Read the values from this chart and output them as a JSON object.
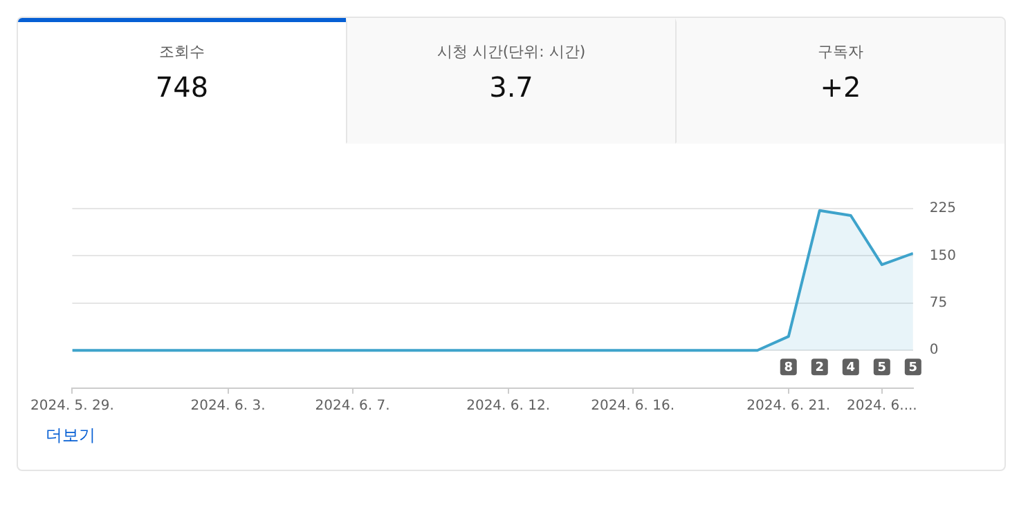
{
  "chart_data": {
    "type": "area",
    "annotations": [
      "조회수",
      "748",
      "시청 시간(단위: 시간)",
      "3.7",
      "구독자",
      "+2",
      "더보기",
      {
        "text": "8",
        "x": "2024-06-21"
      },
      {
        "text": "2",
        "x": "2024-06-22"
      },
      {
        "text": "4",
        "x": "2024-06-23"
      },
      {
        "text": "5",
        "x": "2024-06-24"
      },
      {
        "text": "5",
        "x": "2024-06-25"
      }
    ],
    "x": [
      "2024-05-29",
      "2024-05-30",
      "2024-05-31",
      "2024-06-01",
      "2024-06-02",
      "2024-06-03",
      "2024-06-04",
      "2024-06-05",
      "2024-06-06",
      "2024-06-07",
      "2024-06-08",
      "2024-06-09",
      "2024-06-10",
      "2024-06-11",
      "2024-06-12",
      "2024-06-13",
      "2024-06-14",
      "2024-06-15",
      "2024-06-16",
      "2024-06-17",
      "2024-06-18",
      "2024-06-19",
      "2024-06-20",
      "2024-06-21",
      "2024-06-22",
      "2024-06-23",
      "2024-06-24",
      "2024-06-25"
    ],
    "series": [
      {
        "color": "#3ea3cb",
        "values": [
          0,
          0,
          0,
          0,
          0,
          0,
          0,
          0,
          0,
          0,
          0,
          0,
          0,
          0,
          0,
          0,
          0,
          0,
          0,
          0,
          0,
          0,
          0,
          22,
          222,
          214,
          136,
          154
        ]
      }
    ],
    "xlim": [
      "2024-05-29",
      "2024-06-25"
    ],
    "xticks": [
      {
        "value": "2024-05-29",
        "label": "2024. 5. 29."
      },
      {
        "value": "2024-06-03",
        "label": "2024. 6. 3."
      },
      {
        "value": "2024-06-07",
        "label": "2024. 6. 7."
      },
      {
        "value": "2024-06-12",
        "label": "2024. 6. 12."
      },
      {
        "value": "2024-06-16",
        "label": "2024. 6. 16."
      },
      {
        "value": "2024-06-21",
        "label": "2024. 6. 21."
      },
      {
        "value": "2024-06-24",
        "label": "2024. 6...."
      }
    ],
    "ylim": [
      -60,
      225
    ],
    "yticks": [
      0,
      75,
      150,
      225
    ],
    "grid": "y",
    "legend": false,
    "marker": "none",
    "line_style": "solid"
  }
}
